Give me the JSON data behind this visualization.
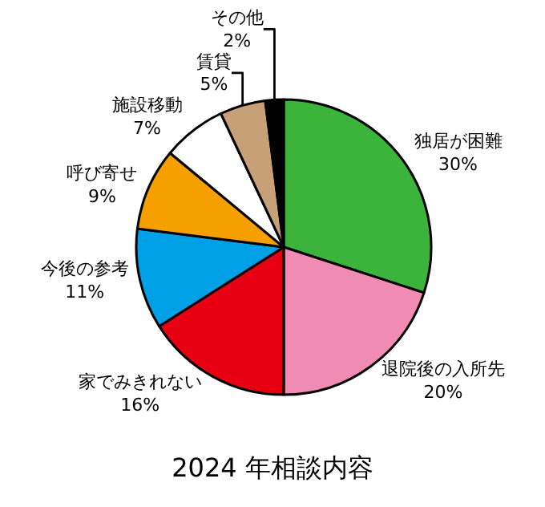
{
  "chart_data": {
    "type": "pie",
    "title": "2024 年相談内容",
    "categories": [
      "独居が困難",
      "退院後の入所先",
      "家でみきれない",
      "今後の参考",
      "呼び寄せ",
      "施設移動",
      "賃貸",
      "その他"
    ],
    "values": [
      30,
      20,
      16,
      11,
      9,
      7,
      5,
      2
    ],
    "colors": [
      "#3cb43c",
      "#f08cb4",
      "#e60012",
      "#00a0e6",
      "#f5a000",
      "#ffffff",
      "#c8a078",
      "#000000"
    ],
    "value_labels": [
      "30%",
      "20%",
      "16%",
      "11%",
      "9%",
      "7%",
      "5%",
      "2%"
    ],
    "legend": false
  }
}
